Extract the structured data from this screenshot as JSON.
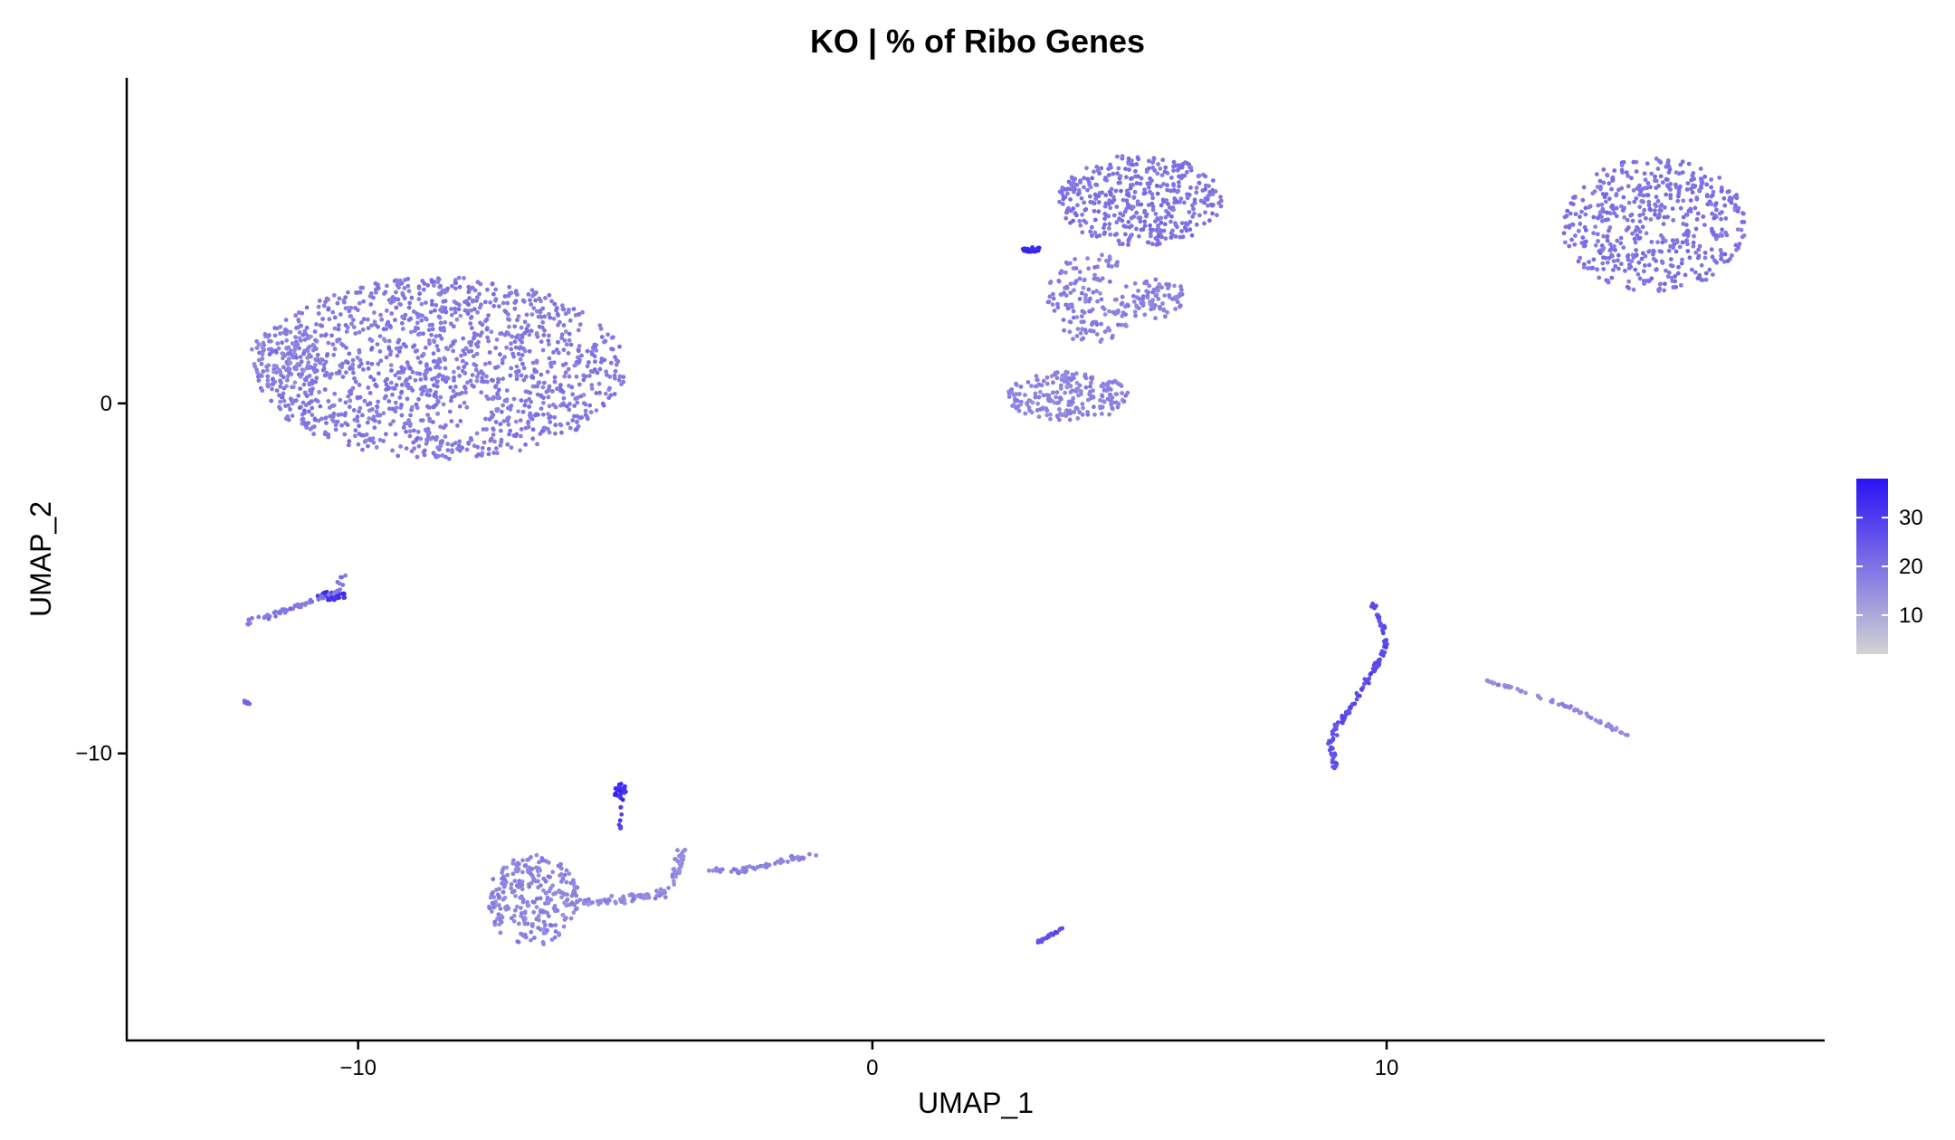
{
  "chart_data": {
    "type": "scatter",
    "title": "KO | % of Ribo Genes",
    "xlabel": "UMAP_1",
    "ylabel": "UMAP_2",
    "xlim": [
      -14.5,
      18.5
    ],
    "ylim": [
      -18.2,
      9.3
    ],
    "xticks": [
      -10,
      0,
      10
    ],
    "xtick_labels": [
      "−10",
      "0",
      "10"
    ],
    "yticks": [
      0,
      -10
    ],
    "ytick_labels": [
      "0",
      "−10"
    ],
    "grid": false,
    "colorbar": {
      "position": "right",
      "range": [
        2,
        38
      ],
      "ticks": [
        10,
        20,
        30
      ],
      "tick_labels": [
        "10",
        "20",
        "30"
      ],
      "low_color": "#d3d3d3",
      "high_color": "#2a12f5"
    },
    "clusters": [
      {
        "cx": -8.4,
        "cy": 1.0,
        "rx": 3.6,
        "ry": 2.6,
        "n": 1400,
        "value": 19
      },
      {
        "cx": -11.4,
        "cy": 1.3,
        "rx": 0.7,
        "ry": 0.9,
        "n": 90,
        "value": 17
      },
      {
        "cx": 5.2,
        "cy": 5.8,
        "rx": 1.6,
        "ry": 1.3,
        "n": 420,
        "value": 20
      },
      {
        "cx": 4.3,
        "cy": 3.0,
        "rx": 0.9,
        "ry": 1.3,
        "n": 160,
        "value": 18
      },
      {
        "cx": 3.8,
        "cy": 0.2,
        "rx": 1.2,
        "ry": 0.7,
        "n": 220,
        "value": 17
      },
      {
        "cx": 5.6,
        "cy": 3.0,
        "rx": 0.5,
        "ry": 0.6,
        "n": 70,
        "value": 18
      },
      {
        "cx": 3.1,
        "cy": 4.4,
        "rx": 0.18,
        "ry": 0.08,
        "n": 25,
        "value": 34
      },
      {
        "cx": 15.2,
        "cy": 5.1,
        "rx": 1.8,
        "ry": 1.9,
        "n": 520,
        "value": 20
      },
      {
        "cx": -6.6,
        "cy": -14.2,
        "rx": 0.9,
        "ry": 1.3,
        "n": 260,
        "value": 17
      },
      {
        "cx": -4.9,
        "cy": -11.1,
        "rx": 0.12,
        "ry": 0.25,
        "n": 28,
        "value": 33
      },
      {
        "cx": -10.5,
        "cy": -5.5,
        "rx": 0.3,
        "ry": 0.12,
        "n": 35,
        "value": 33
      }
    ],
    "strands": [
      {
        "path": [
          [
            -12.2,
            -6.3
          ],
          [
            -11.4,
            -5.9
          ],
          [
            -10.8,
            -5.6
          ],
          [
            -10.4,
            -5.4
          ],
          [
            -10.3,
            -4.9
          ]
        ],
        "n": 60,
        "value": 19,
        "width": 0.12
      },
      {
        "path": [
          [
            -12.2,
            -8.5
          ],
          [
            -12.1,
            -8.6
          ]
        ],
        "n": 8,
        "value": 22,
        "width": 0.05
      },
      {
        "path": [
          [
            -6.0,
            -14.3
          ],
          [
            -5.0,
            -14.2
          ],
          [
            -4.1,
            -14.0
          ],
          [
            -3.8,
            -13.4
          ],
          [
            -3.7,
            -12.7
          ]
        ],
        "n": 110,
        "value": 16,
        "width": 0.15
      },
      {
        "path": [
          [
            -4.9,
            -11.5
          ],
          [
            -4.9,
            -12.2
          ]
        ],
        "n": 8,
        "value": 30,
        "width": 0.04
      },
      {
        "path": [
          [
            -3.2,
            -13.3
          ],
          [
            -2.6,
            -13.4
          ],
          [
            -2.1,
            -13.2
          ],
          [
            -1.5,
            -13.0
          ],
          [
            -1.1,
            -12.9
          ]
        ],
        "n": 55,
        "value": 17,
        "width": 0.1
      },
      {
        "path": [
          [
            3.2,
            -15.4
          ],
          [
            3.7,
            -15.0
          ]
        ],
        "n": 22,
        "value": 27,
        "width": 0.05
      },
      {
        "path": [
          [
            9.7,
            -5.6
          ],
          [
            9.9,
            -6.3
          ],
          [
            10.0,
            -7.0
          ],
          [
            9.7,
            -7.7
          ],
          [
            9.5,
            -8.2
          ],
          [
            9.2,
            -8.9
          ],
          [
            9.0,
            -9.3
          ],
          [
            8.9,
            -9.8
          ],
          [
            9.0,
            -10.4
          ]
        ],
        "n": 120,
        "value": 27,
        "width": 0.08
      },
      {
        "path": [
          [
            11.9,
            -7.9
          ],
          [
            12.8,
            -8.3
          ],
          [
            13.6,
            -8.7
          ],
          [
            14.3,
            -9.2
          ],
          [
            14.7,
            -9.5
          ]
        ],
        "n": 70,
        "value": 16,
        "width": 0.06
      }
    ]
  }
}
